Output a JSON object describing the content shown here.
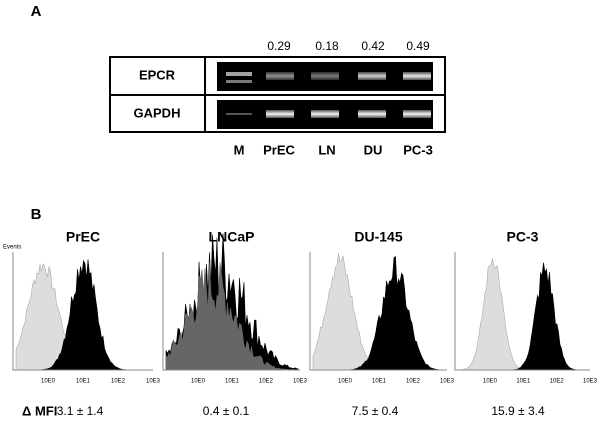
{
  "panel_a": {
    "label": "A",
    "rows": [
      "EPCR",
      "GAPDH"
    ],
    "ratios": [
      0.29,
      0.18,
      0.42,
      0.49
    ],
    "lanes": [
      "M",
      "PrEC",
      "LN",
      "DU",
      "PC-3"
    ]
  },
  "panel_b": {
    "label": "B",
    "y_label": "Events",
    "x_ticks": [
      "10E0",
      "10E1",
      "10E2",
      "10E3"
    ],
    "panels": [
      {
        "title": "PrEC",
        "mfi": "3.1 ± 1.4"
      },
      {
        "title": "LNCaP",
        "mfi": "0.4 ± 0.1"
      },
      {
        "title": "DU-145",
        "mfi": "7.5 ± 0.4"
      },
      {
        "title": "PC-3",
        "mfi": "15.9 ± 3.4"
      }
    ],
    "mfi_label": "Δ MFI"
  }
}
